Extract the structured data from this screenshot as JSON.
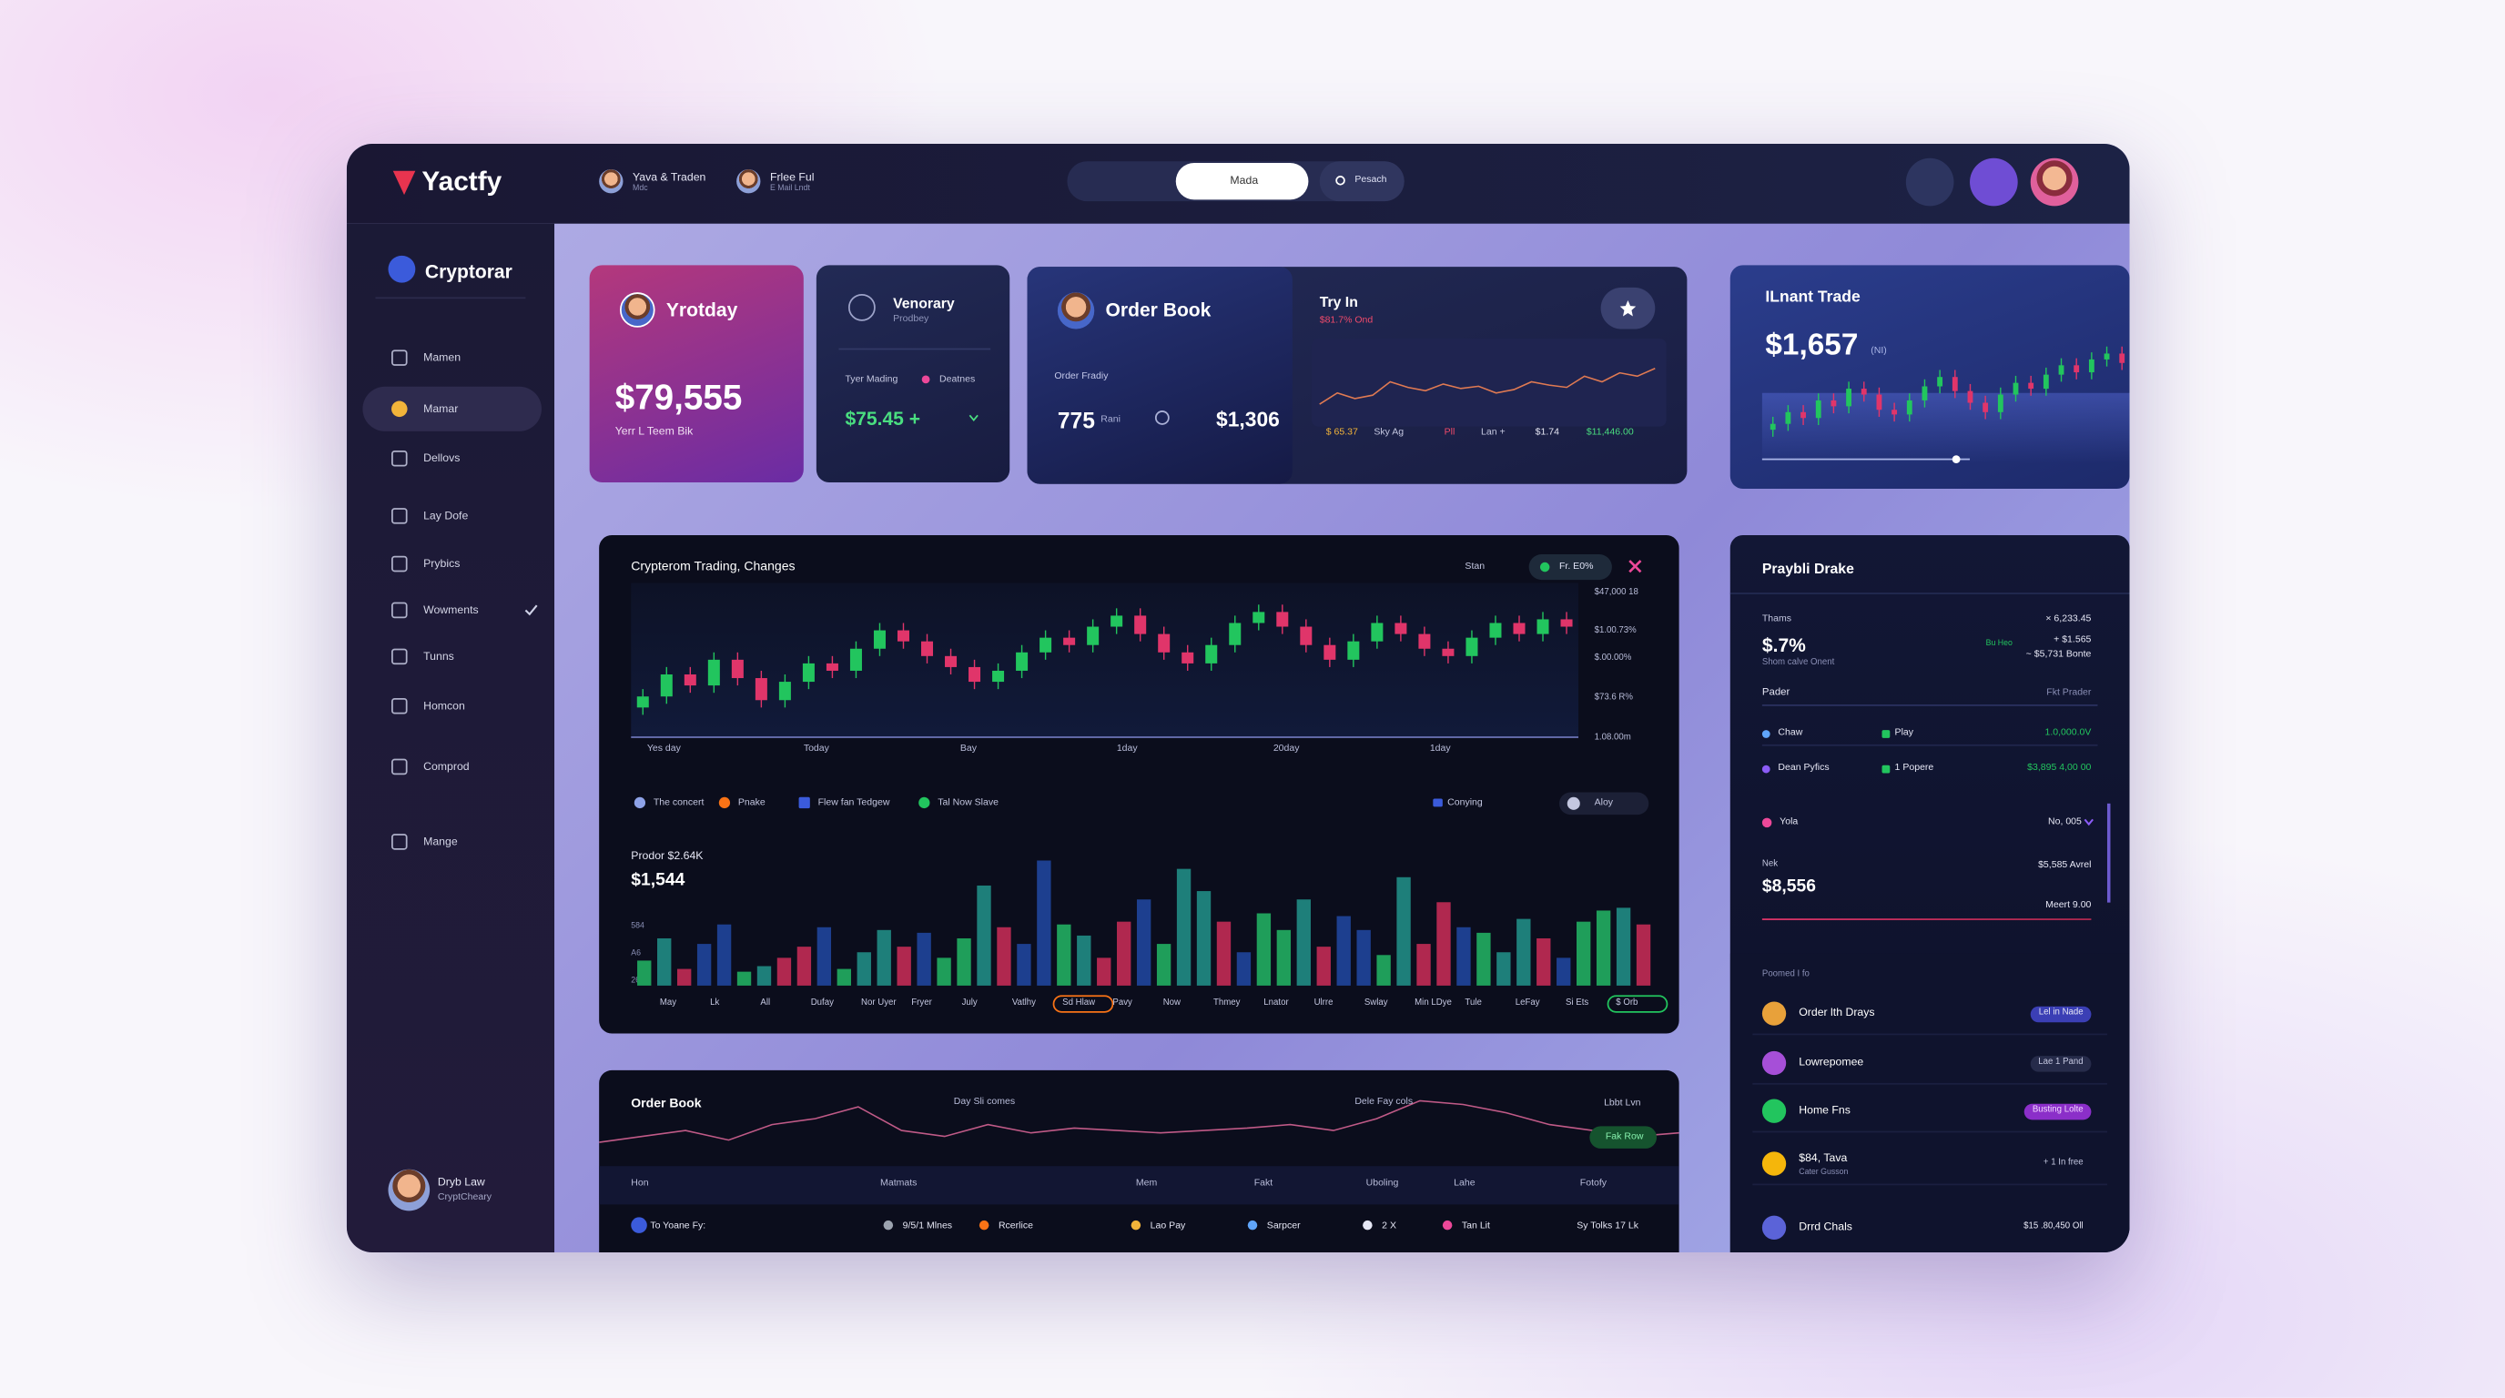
{
  "brand": "Yactfy",
  "header": {
    "users": [
      {
        "name": "Yava & Traden",
        "sub": "Mdc"
      },
      {
        "name": "Frlee Ful",
        "sub": "E Mail Lndt"
      }
    ],
    "tab": "Mada",
    "search": "Pesach"
  },
  "sidebar": {
    "title": "Cryptorar",
    "items": [
      "Mamen",
      "Mamar",
      "Dellovs",
      "Lay Dofe",
      "Prybics",
      "Wowments",
      "Tunns",
      "Homcon",
      "Comprod",
      "Mange"
    ],
    "user": {
      "name": "Dryb Law",
      "sub": "CryptCheary"
    }
  },
  "colors": {
    "up": "#22c55e",
    "down": "#e0356a"
  },
  "cards": {
    "yesterday": {
      "title": "Yrotday",
      "value": "$79,555",
      "sub": "Yerr L Teem Bik"
    },
    "venorary": {
      "title": "Venorary",
      "sub": "Prodbey",
      "label1": "Tyer Mading",
      "label2": "Deatnes",
      "value": "$75.45 +"
    },
    "order_book": {
      "title": "Order Book",
      "label": "Order Fradiy",
      "value1": "775",
      "unit": "Rani",
      "value2": "$1,306"
    },
    "try_in": {
      "title": "Try In",
      "sub": "$81.7% Ond",
      "stats": [
        "$ 65.37",
        "Sky Ag",
        "Pll",
        "Lan +",
        "$1.74",
        "$11,446.00"
      ],
      "line": [
        30,
        40,
        35,
        38,
        50,
        45,
        42,
        48,
        44,
        46,
        40,
        43,
        50,
        47,
        45,
        55,
        50,
        58,
        55,
        62
      ],
      "line_lim": [
        20,
        70
      ]
    },
    "instant": {
      "title": "ILnant Trade",
      "value": "$1,657",
      "unit": "(NI)",
      "candle_lim": [
        10,
        100
      ],
      "candles": [
        [
          25,
          36,
          19,
          30
        ],
        [
          30,
          46,
          24,
          40
        ],
        [
          40,
          46,
          29,
          35
        ],
        [
          35,
          56,
          29,
          50
        ],
        [
          50,
          56,
          39,
          45
        ],
        [
          45,
          66,
          39,
          60
        ],
        [
          60,
          66,
          49,
          55
        ],
        [
          55,
          61,
          36,
          42
        ],
        [
          42,
          48,
          32,
          38
        ],
        [
          38,
          56,
          32,
          50
        ],
        [
          50,
          68,
          44,
          62
        ],
        [
          62,
          76,
          56,
          70
        ],
        [
          70,
          76,
          52,
          58
        ],
        [
          58,
          64,
          42,
          48
        ],
        [
          48,
          54,
          34,
          40
        ],
        [
          40,
          61,
          34,
          55
        ],
        [
          55,
          71,
          49,
          65
        ],
        [
          65,
          71,
          54,
          60
        ],
        [
          60,
          78,
          54,
          72
        ],
        [
          72,
          86,
          66,
          80
        ],
        [
          80,
          86,
          68,
          74
        ],
        [
          74,
          91,
          68,
          85
        ],
        [
          85,
          96,
          79,
          90
        ],
        [
          90,
          96,
          76,
          82
        ]
      ]
    }
  },
  "main_chart": {
    "title": "Crypterom Trading, Changes",
    "button": "Stan",
    "pill": "Fr. E0%",
    "price_labels": [
      "$47,000 18",
      "$1.00.73%",
      "$.00.00%",
      "$73.6 R%",
      "1.08.00m"
    ],
    "x_labels": [
      "Yes day",
      "Today",
      "Bay",
      "1day",
      "20day",
      "1day"
    ],
    "candle_lim": [
      10,
      90
    ],
    "candles": [
      [
        24,
        34,
        20,
        30
      ],
      [
        30,
        46,
        26,
        42
      ],
      [
        42,
        46,
        32,
        36
      ],
      [
        36,
        54,
        32,
        50
      ],
      [
        50,
        54,
        36,
        40
      ],
      [
        40,
        44,
        24,
        28
      ],
      [
        28,
        42,
        24,
        38
      ],
      [
        38,
        52,
        34,
        48
      ],
      [
        48,
        52,
        40,
        44
      ],
      [
        44,
        60,
        40,
        56
      ],
      [
        56,
        70,
        52,
        66
      ],
      [
        66,
        70,
        56,
        60
      ],
      [
        60,
        64,
        48,
        52
      ],
      [
        52,
        56,
        42,
        46
      ],
      [
        46,
        50,
        34,
        38
      ],
      [
        38,
        48,
        34,
        44
      ],
      [
        44,
        58,
        40,
        54
      ],
      [
        54,
        66,
        50,
        62
      ],
      [
        62,
        66,
        54,
        58
      ],
      [
        58,
        72,
        54,
        68
      ],
      [
        68,
        78,
        64,
        74
      ],
      [
        74,
        78,
        60,
        64
      ],
      [
        64,
        68,
        50,
        54
      ],
      [
        54,
        58,
        44,
        48
      ],
      [
        48,
        62,
        44,
        58
      ],
      [
        58,
        74,
        54,
        70
      ],
      [
        70,
        80,
        66,
        76
      ],
      [
        76,
        80,
        64,
        68
      ],
      [
        68,
        72,
        54,
        58
      ],
      [
        58,
        62,
        46,
        50
      ],
      [
        50,
        64,
        46,
        60
      ],
      [
        60,
        74,
        56,
        70
      ],
      [
        70,
        74,
        60,
        64
      ],
      [
        64,
        68,
        52,
        56
      ],
      [
        56,
        60,
        48,
        52
      ],
      [
        52,
        66,
        48,
        62
      ],
      [
        62,
        74,
        58,
        70
      ],
      [
        70,
        74,
        60,
        64
      ],
      [
        64,
        76,
        60,
        72
      ],
      [
        72,
        76,
        64,
        68
      ]
    ],
    "legend": [
      "The concert",
      "Pnake",
      "Flew fan Tedgew",
      "Tal Now Slave"
    ],
    "dropdown1": "Conying",
    "dropdown2": "Aloy",
    "volume_title": "Prodor $2.64K",
    "volume_value": "$1,544",
    "volume_axis": [
      "584",
      "A6",
      "26"
    ],
    "volume_lim": [
      0,
      100
    ],
    "bar_colors": [
      "#1f9e5a",
      "#1d3f8f",
      "#b0284f",
      "#1e7f7a"
    ],
    "volume": [
      18,
      34,
      12,
      30,
      44,
      10,
      14,
      20,
      28,
      42,
      12,
      24,
      40,
      28,
      38,
      20,
      34,
      72,
      42,
      30,
      90,
      44,
      36,
      20,
      46,
      62,
      30,
      84,
      68,
      46,
      24,
      52,
      40,
      62,
      28,
      50,
      40,
      22,
      78,
      30,
      60,
      42,
      38,
      24,
      48,
      34,
      20,
      46,
      54,
      56,
      44
    ],
    "volume_x": [
      "May",
      "Lk",
      "All",
      "Dufay",
      "Nor Uyer",
      "Fryer",
      "July",
      "Vatlhy",
      "Sd Hlaw",
      "Pavy",
      "Now",
      "Thmey",
      "Lnator",
      "Ulrre",
      "Swlay",
      "Min LDye",
      "Tule",
      "LeFay",
      "Si Ets",
      "$ Orb"
    ]
  },
  "order_panel": {
    "title": "Order Book",
    "note1": "Day Sli comes",
    "note2": "Dele Fay cols",
    "dropdown": "Lbbt Lvn",
    "button": "Fak Row",
    "line": [
      40,
      45,
      50,
      42,
      55,
      60,
      70,
      50,
      45,
      55,
      48,
      52,
      50,
      48,
      50,
      52,
      55,
      50,
      60,
      75,
      72,
      65,
      55,
      50,
      45,
      48
    ],
    "line_lim": [
      20,
      90
    ],
    "columns": [
      "Hon",
      "Matmats",
      "Mem",
      "Fakt",
      "Uboling",
      "Lahe",
      "Fotofy"
    ],
    "row": [
      "To Yoane Fy:",
      "9/5/1 Mlnes",
      "Rcerlice",
      "Lao Pay",
      "Sarpcer",
      "2 X",
      "Tan Lit",
      "Sy Tolks 17 Lk"
    ]
  },
  "right_panel": {
    "title": "Praybli Drake",
    "label": "Thams",
    "value": "$.7%",
    "sub": "Shom calve Onent",
    "stat1": "× 6,233.45",
    "stat2_label": "Bu Heo",
    "stat2": "+ $1.565",
    "stat3": "~ $5,731 Bonte",
    "col1": "Pader",
    "col2": "Fkt Prader",
    "rows": [
      [
        "Chaw",
        "Play",
        "1.0,000.0V"
      ],
      [
        "Dean Pyfics",
        "1 Popere",
        "$3,895 4,00 00"
      ]
    ],
    "fav": "Yola",
    "fav_value": "No, 005",
    "net_label": "Nek",
    "net_value": "$8,556",
    "net_stat": "$5,585 Avrel",
    "net_sub": "Meert 9.00",
    "list_title": "Poomed I fo",
    "list": [
      {
        "name": "Order lth Drays",
        "tag": "Lel in Nade"
      },
      {
        "name": "Lowrepomee",
        "tag": "Lae 1 Pand"
      },
      {
        "name": "Home Fns",
        "tag": "Busting Lolte"
      },
      {
        "name": "$84, Tava",
        "sub": "Cater Gusson",
        "tag": "+ 1 In free"
      },
      {
        "name": "Drrd Chals",
        "tag": "$15 .80,450 Oll"
      }
    ]
  }
}
